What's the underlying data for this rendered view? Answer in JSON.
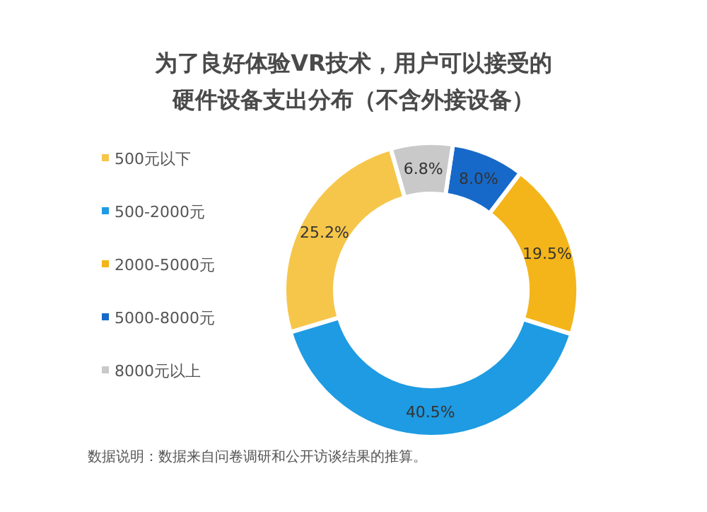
{
  "chart_data": {
    "type": "donut",
    "title": "为了良好体验VR技术，用户可以接受的硬件设备支出分布（不含外接设备）",
    "categories": [
      "500元以下",
      "500-2000元",
      "2000-5000元",
      "5000-8000元",
      "8000元以上"
    ],
    "values": [
      25.2,
      40.5,
      19.5,
      8.0,
      6.8
    ],
    "colors": [
      "#f6c64a",
      "#1e9be2",
      "#f3b51a",
      "#1769c9",
      "#c9c9c9"
    ],
    "value_labels": [
      "25.2%",
      "40.5%",
      "19.5%",
      "8.0%",
      "6.8%"
    ],
    "legend": "left",
    "annotations": [
      "数据说明：数据来自问卷调研和公开访谈结果的推算。"
    ]
  }
}
